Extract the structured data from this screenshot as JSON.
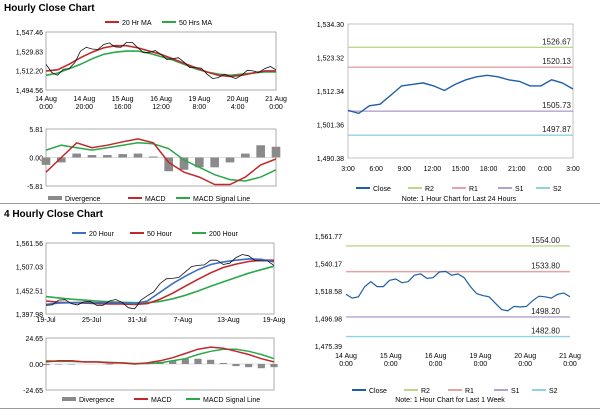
{
  "sections": [
    {
      "title": "Hourly Close Chart"
    },
    {
      "title": "4 Hourly Close Chart"
    }
  ],
  "chart_data": [
    {
      "id": "h_price",
      "type": "line",
      "legend": [
        "20 Hr MA",
        "50 Hrs MA"
      ],
      "x_ticks": [
        "14 Aug\n0:00",
        "14 Aug\n20:00",
        "15 Aug\n16:00",
        "16 Aug\n12:00",
        "19 Aug\n8:00",
        "20 Aug\n4:00",
        "21 Aug\n0:00"
      ],
      "y_ticks": [
        "1,547.46",
        "1,529.83",
        "1,512.20",
        "1,494.56"
      ],
      "ylim": [
        1494.56,
        1547.46
      ],
      "series": [
        {
          "name": "Close",
          "values": [
            1518,
            1508,
            1514,
            1530,
            1532,
            1536,
            1534,
            1538,
            1533,
            1529,
            1527,
            1523,
            1520,
            1515,
            1509,
            1506,
            1507,
            1508,
            1512,
            1514,
            1513
          ]
        },
        {
          "name": "20 Hr MA",
          "values": [
            1512,
            1513,
            1518,
            1524,
            1529,
            1533,
            1535,
            1535,
            1533,
            1530,
            1527,
            1523,
            1519,
            1515,
            1511,
            1508,
            1507,
            1508,
            1510,
            1512,
            1512
          ]
        },
        {
          "name": "50 Hrs MA",
          "values": [
            1508,
            1510,
            1514,
            1518,
            1523,
            1527,
            1529,
            1530,
            1530,
            1528,
            1525,
            1522,
            1518,
            1514,
            1511,
            1509,
            1508,
            1509,
            1510,
            1511,
            1511
          ]
        }
      ]
    },
    {
      "id": "h_macd",
      "type": "line",
      "legend": [
        "Divergence",
        "MACD",
        "MACD Signal Line"
      ],
      "y_ticks": [
        "5.81",
        "0.00",
        "-5.81"
      ],
      "ylim": [
        -5.81,
        5.81
      ],
      "series": [
        {
          "name": "MACD",
          "values": [
            -3,
            0,
            3,
            2,
            2.5,
            3.2,
            3.8,
            3,
            -1,
            -3,
            -4,
            -5.5,
            -5.5,
            -4,
            -1.5,
            -0.3
          ]
        },
        {
          "name": "MACD Signal Line",
          "values": [
            1.5,
            2.5,
            2,
            1.5,
            2,
            2.5,
            3,
            2.8,
            1.8,
            -0.5,
            -2,
            -3.5,
            -4.5,
            -4.8,
            -4,
            -2.5
          ]
        },
        {
          "name": "Divergence",
          "values": [
            -1.5,
            -1,
            0.8,
            0.5,
            0.5,
            0.7,
            0.8,
            0.2,
            -2.8,
            -2.5,
            -2,
            -2,
            -1,
            0.8,
            2.5,
            2.2
          ]
        }
      ]
    },
    {
      "id": "h_levels",
      "type": "line",
      "y_ticks": [
        "1,534.30",
        "1,523.32",
        "1,512.34",
        "1,501.36",
        "1,490.38"
      ],
      "x_ticks": [
        "3:00",
        "6:00",
        "9:00",
        "12:00",
        "15:00",
        "18:00",
        "21:00",
        "0:00",
        "3:00"
      ],
      "ylim": [
        1490.38,
        1534.3
      ],
      "levels": [
        {
          "name": "R2",
          "value": 1526.67,
          "label": "1526.67",
          "color": "#bcd68a"
        },
        {
          "name": "R1",
          "value": 1520.13,
          "label": "1520.13",
          "color": "#e5a3a3"
        },
        {
          "name": "S1",
          "value": 1505.73,
          "label": "1505.73",
          "color": "#b3a2cf"
        },
        {
          "name": "S2",
          "value": 1497.87,
          "label": "1497.87",
          "color": "#8fd3e0"
        }
      ],
      "series": [
        {
          "name": "Close",
          "values": [
            1506,
            1505,
            1507.5,
            1508,
            1511,
            1514,
            1514.5,
            1515,
            1514,
            1512.5,
            1514.5,
            1516,
            1517,
            1517.5,
            1517,
            1516,
            1515.5,
            1514,
            1514,
            1516,
            1515,
            1513
          ]
        }
      ],
      "legend": [
        "Close",
        "R2",
        "R1",
        "S1",
        "S2"
      ],
      "note": "Note: 1 Hour Chart for Last 24 Hours"
    },
    {
      "id": "h4_price",
      "type": "line",
      "legend": [
        "20 Hour",
        "50 Hour",
        "200 Hour"
      ],
      "x_ticks": [
        "19-Jul",
        "25-Jul",
        "31-Jul",
        "7-Aug",
        "13-Aug",
        "19-Aug"
      ],
      "y_ticks": [
        "1,561.56",
        "1,507.03",
        "1,452.51",
        "1,397.98"
      ],
      "ylim": [
        1397.98,
        1561.56
      ],
      "series": [
        {
          "name": "Close",
          "values": [
            1418,
            1430,
            1422,
            1426,
            1418,
            1428,
            1425,
            1410,
            1440,
            1468,
            1480,
            1495,
            1510,
            1522,
            1512,
            1528,
            1532,
            1520,
            1510
          ]
        },
        {
          "name": "20 Hour",
          "values": [
            1420,
            1423,
            1424,
            1425,
            1424,
            1424,
            1424,
            1422,
            1428,
            1448,
            1468,
            1485,
            1500,
            1512,
            1518,
            1522,
            1525,
            1524,
            1518
          ]
        },
        {
          "name": "50 Hour",
          "values": [
            1428,
            1425,
            1424,
            1423,
            1422,
            1421,
            1421,
            1420,
            1422,
            1432,
            1446,
            1462,
            1478,
            1493,
            1505,
            1513,
            1519,
            1522,
            1522
          ]
        },
        {
          "name": "200 Hour",
          "values": [
            1438,
            1435,
            1432,
            1430,
            1428,
            1426,
            1425,
            1424,
            1424,
            1427,
            1433,
            1441,
            1451,
            1462,
            1472,
            1482,
            1492,
            1500,
            1508
          ]
        }
      ]
    },
    {
      "id": "h4_macd",
      "type": "line",
      "legend": [
        "Divergence",
        "MACD",
        "MACD Signal Line"
      ],
      "y_ticks": [
        "24.65",
        "0.00",
        "-24.65"
      ],
      "ylim": [
        -24.65,
        24.65
      ],
      "series": [
        {
          "name": "MACD",
          "values": [
            2,
            3,
            3,
            2,
            2,
            1,
            1,
            0,
            1,
            3,
            6,
            10,
            14,
            16,
            15,
            12,
            9,
            5,
            2
          ]
        },
        {
          "name": "MACD Signal Line",
          "values": [
            3,
            2.5,
            2.5,
            2,
            2,
            1.5,
            1,
            0.5,
            0.5,
            1,
            3,
            5,
            9,
            12,
            14,
            14,
            12,
            9,
            5
          ]
        },
        {
          "name": "Divergence",
          "values": [
            -1,
            -0.5,
            -0.5,
            0,
            0,
            -0.5,
            0,
            -0.5,
            0,
            2,
            3,
            5,
            5,
            4,
            1,
            -2,
            -3,
            -4,
            -3
          ]
        }
      ]
    },
    {
      "id": "h4_levels",
      "type": "line",
      "y_ticks": [
        "1,561.77",
        "1,540.17",
        "1,518.58",
        "1,496.98",
        "1,475.39"
      ],
      "x_ticks": [
        "14 Aug\n0:00",
        "15 Aug\n0:00",
        "16 Aug\n0:00",
        "19 Aug\n0:00",
        "20 Aug\n0:00",
        "21 Aug\n0:00"
      ],
      "ylim": [
        1475.39,
        1561.77
      ],
      "levels": [
        {
          "name": "R2",
          "value": 1554.0,
          "label": "1554.00",
          "color": "#bcd68a"
        },
        {
          "name": "R1",
          "value": 1533.8,
          "label": "1533.80",
          "color": "#e5a3a3"
        },
        {
          "name": "S1",
          "value": 1498.2,
          "label": "1498.20",
          "color": "#b3a2cf"
        },
        {
          "name": "S2",
          "value": 1482.8,
          "label": "1482.80",
          "color": "#8fd3e0"
        }
      ],
      "series": [
        {
          "name": "Close",
          "values": [
            1516,
            1514,
            1526,
            1522,
            1528,
            1526,
            1532,
            1529,
            1534,
            1532,
            1522,
            1515,
            1509,
            1503,
            1506,
            1511,
            1514,
            1516,
            1514
          ]
        }
      ],
      "legend": [
        "Close",
        "R2",
        "R1",
        "S1",
        "S2"
      ],
      "note": "Note: 1 Hour Chart for Last 1 Week"
    }
  ],
  "colors": {
    "close": "#1f5fa8",
    "ma_red": "#c0282c",
    "ma_green": "#2aa84a",
    "ma_blue": "#3d6fc4",
    "divergence": "#8a8a8a"
  }
}
